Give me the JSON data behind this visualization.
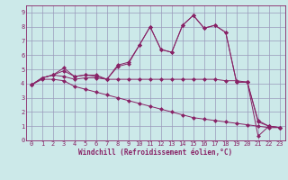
{
  "xlabel": "Windchill (Refroidissement éolien,°C)",
  "background_color": "#cce9e9",
  "grid_color": "#9999bb",
  "line_color": "#882266",
  "x": [
    0,
    1,
    2,
    3,
    4,
    5,
    6,
    7,
    8,
    9,
    10,
    11,
    12,
    13,
    14,
    15,
    16,
    17,
    18,
    19,
    20,
    21,
    22,
    23
  ],
  "line1": [
    3.9,
    4.4,
    4.6,
    5.1,
    4.5,
    4.6,
    4.6,
    4.3,
    5.3,
    5.5,
    6.7,
    8.0,
    6.4,
    6.2,
    8.1,
    8.8,
    7.9,
    8.1,
    7.6,
    4.1,
    4.1,
    1.4,
    1.0,
    0.9
  ],
  "line2": [
    3.9,
    4.4,
    4.6,
    4.9,
    4.5,
    4.6,
    4.5,
    4.3,
    5.2,
    5.4,
    6.7,
    8.0,
    6.4,
    6.2,
    8.1,
    8.8,
    7.9,
    8.1,
    7.6,
    4.1,
    4.1,
    0.3,
    1.0,
    0.9
  ],
  "line3": [
    3.9,
    4.4,
    4.6,
    4.5,
    4.3,
    4.4,
    4.4,
    4.3,
    4.3,
    4.3,
    4.3,
    4.3,
    4.3,
    4.3,
    4.3,
    4.3,
    4.3,
    4.3,
    4.2,
    4.2,
    4.1,
    1.3,
    1.0,
    0.9
  ],
  "line4": [
    3.9,
    4.3,
    4.3,
    4.2,
    3.8,
    3.6,
    3.4,
    3.2,
    3.0,
    2.8,
    2.6,
    2.4,
    2.2,
    2.0,
    1.8,
    1.6,
    1.5,
    1.4,
    1.3,
    1.2,
    1.1,
    1.0,
    0.9,
    0.9
  ],
  "ylim": [
    0,
    9.5
  ],
  "xlim": [
    -0.5,
    23.5
  ],
  "yticks": [
    0,
    1,
    2,
    3,
    4,
    5,
    6,
    7,
    8,
    9
  ],
  "xticks": [
    0,
    1,
    2,
    3,
    4,
    5,
    6,
    7,
    8,
    9,
    10,
    11,
    12,
    13,
    14,
    15,
    16,
    17,
    18,
    19,
    20,
    21,
    22,
    23
  ],
  "tick_fontsize": 5.0,
  "xlabel_fontsize": 5.5
}
